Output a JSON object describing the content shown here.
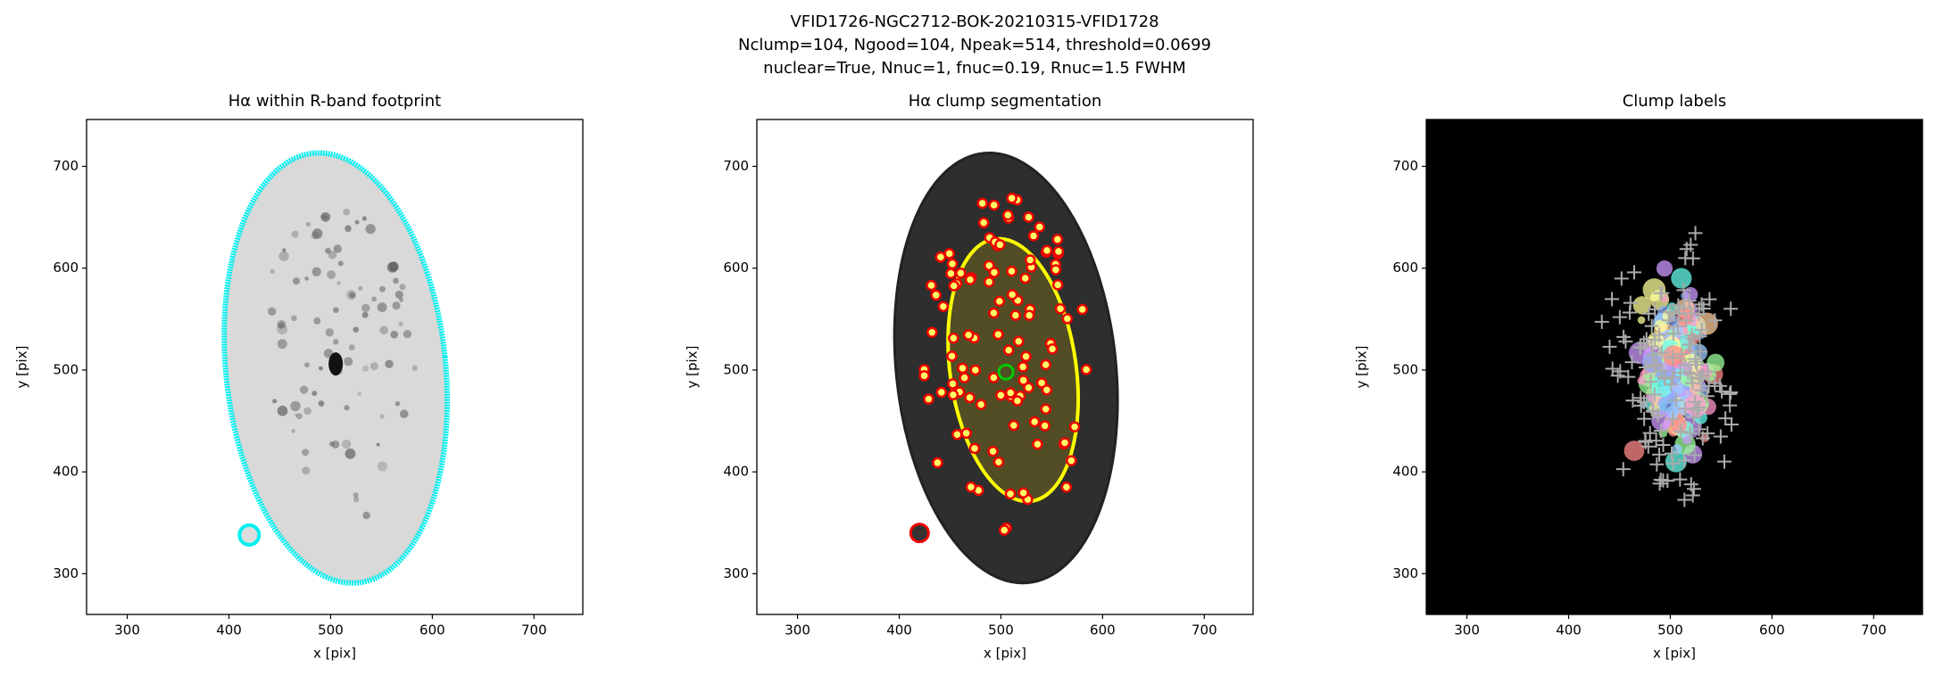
{
  "title": [
    "VFID1726-NGC2712-BOK-20210315-VFID1728",
    "Nclump=104, Ngood=104, Npeak=514, threshold=0.0699",
    "nuclear=True, Nnuc=1, fnuc=0.19, Rnuc=1.5 FWHM"
  ],
  "chart_data": [
    {
      "type": "image",
      "title": "Hα within R-band footprint",
      "xlabel": "x [pix]",
      "ylabel": "y [pix]",
      "xlim": [
        260,
        748
      ],
      "ylim": [
        260,
        746
      ],
      "xticks": [
        300,
        400,
        500,
        600,
        700
      ],
      "yticks": [
        300,
        400,
        500,
        600,
        700
      ]
    },
    {
      "type": "image",
      "title": "Hα clump segmentation",
      "xlabel": "x [pix]",
      "ylabel": "y [pix]",
      "xlim": [
        260,
        748
      ],
      "ylim": [
        260,
        746
      ],
      "xticks": [
        300,
        400,
        500,
        600,
        700
      ],
      "yticks": [
        300,
        400,
        500,
        600,
        700
      ]
    },
    {
      "type": "image",
      "title": "Clump labels",
      "xlabel": "x [pix]",
      "ylabel": "y [pix]",
      "xlim": [
        260,
        748
      ],
      "ylim": [
        260,
        746
      ],
      "xticks": [
        300,
        400,
        500,
        600,
        700
      ],
      "yticks": [
        300,
        400,
        500,
        600,
        700
      ]
    }
  ]
}
